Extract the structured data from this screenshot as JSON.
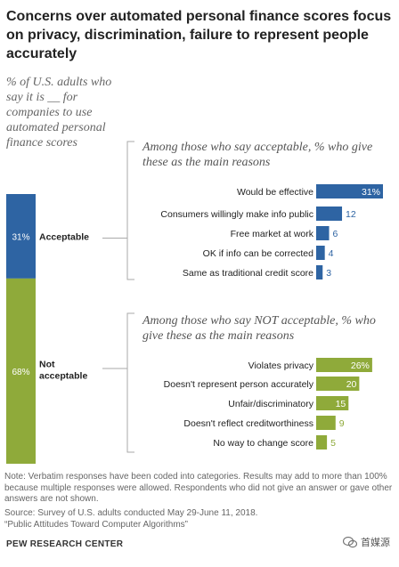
{
  "title": "Concerns over automated personal finance scores focus on privacy, discrimination, failure to represent people accurately",
  "subtitle": "% of U.S. adults who say it is __ for companies to use automated personal finance scores",
  "acceptable_head": "Among those who say acceptable, % who give these as the main reasons",
  "not_acceptable_head": "Among those who say NOT acceptable, % who give these as the main reasons",
  "note": "Note: Verbatim responses have been coded into categories. Results may add to more than 100% because multiple responses were allowed. Respondents who did not give an answer or gave other answers are not shown.",
  "source_line1": "Source: Survey of U.S. adults conducted May 29-June 11, 2018.",
  "source_line2": "“Public Attitudes Toward Computer Algorithms”",
  "org": "PEW RESEARCH CENTER",
  "watermark": "首媒源",
  "colors": {
    "blue": "#2e64a3",
    "green": "#8faa3a"
  },
  "chart_data": [
    {
      "type": "bar",
      "orientation": "vertical-stacked",
      "categories": [
        "Acceptable",
        "Not acceptable"
      ],
      "values": [
        31,
        68
      ],
      "value_labels": [
        "31%",
        "68%"
      ],
      "display_labels": [
        "Acceptable",
        "Not\nacceptable"
      ]
    },
    {
      "type": "bar",
      "orientation": "horizontal",
      "group": "Acceptable",
      "categories": [
        "Would be effective",
        "Consumers willingly make info public",
        "Free market at work",
        "OK if info can be corrected",
        "Same as traditional credit score"
      ],
      "values": [
        31,
        12,
        6,
        4,
        3
      ],
      "value_labels": [
        "31%",
        "12",
        "6",
        "4",
        "3"
      ]
    },
    {
      "type": "bar",
      "orientation": "horizontal",
      "group": "Not acceptable",
      "categories": [
        "Violates privacy",
        "Doesn't represent person accurately",
        "Unfair/discriminatory",
        "Doesn't reflect creditworthiness",
        "No way to change score"
      ],
      "values": [
        26,
        20,
        15,
        9,
        5
      ],
      "value_labels": [
        "26%",
        "20",
        "15",
        "9",
        "5"
      ]
    }
  ]
}
